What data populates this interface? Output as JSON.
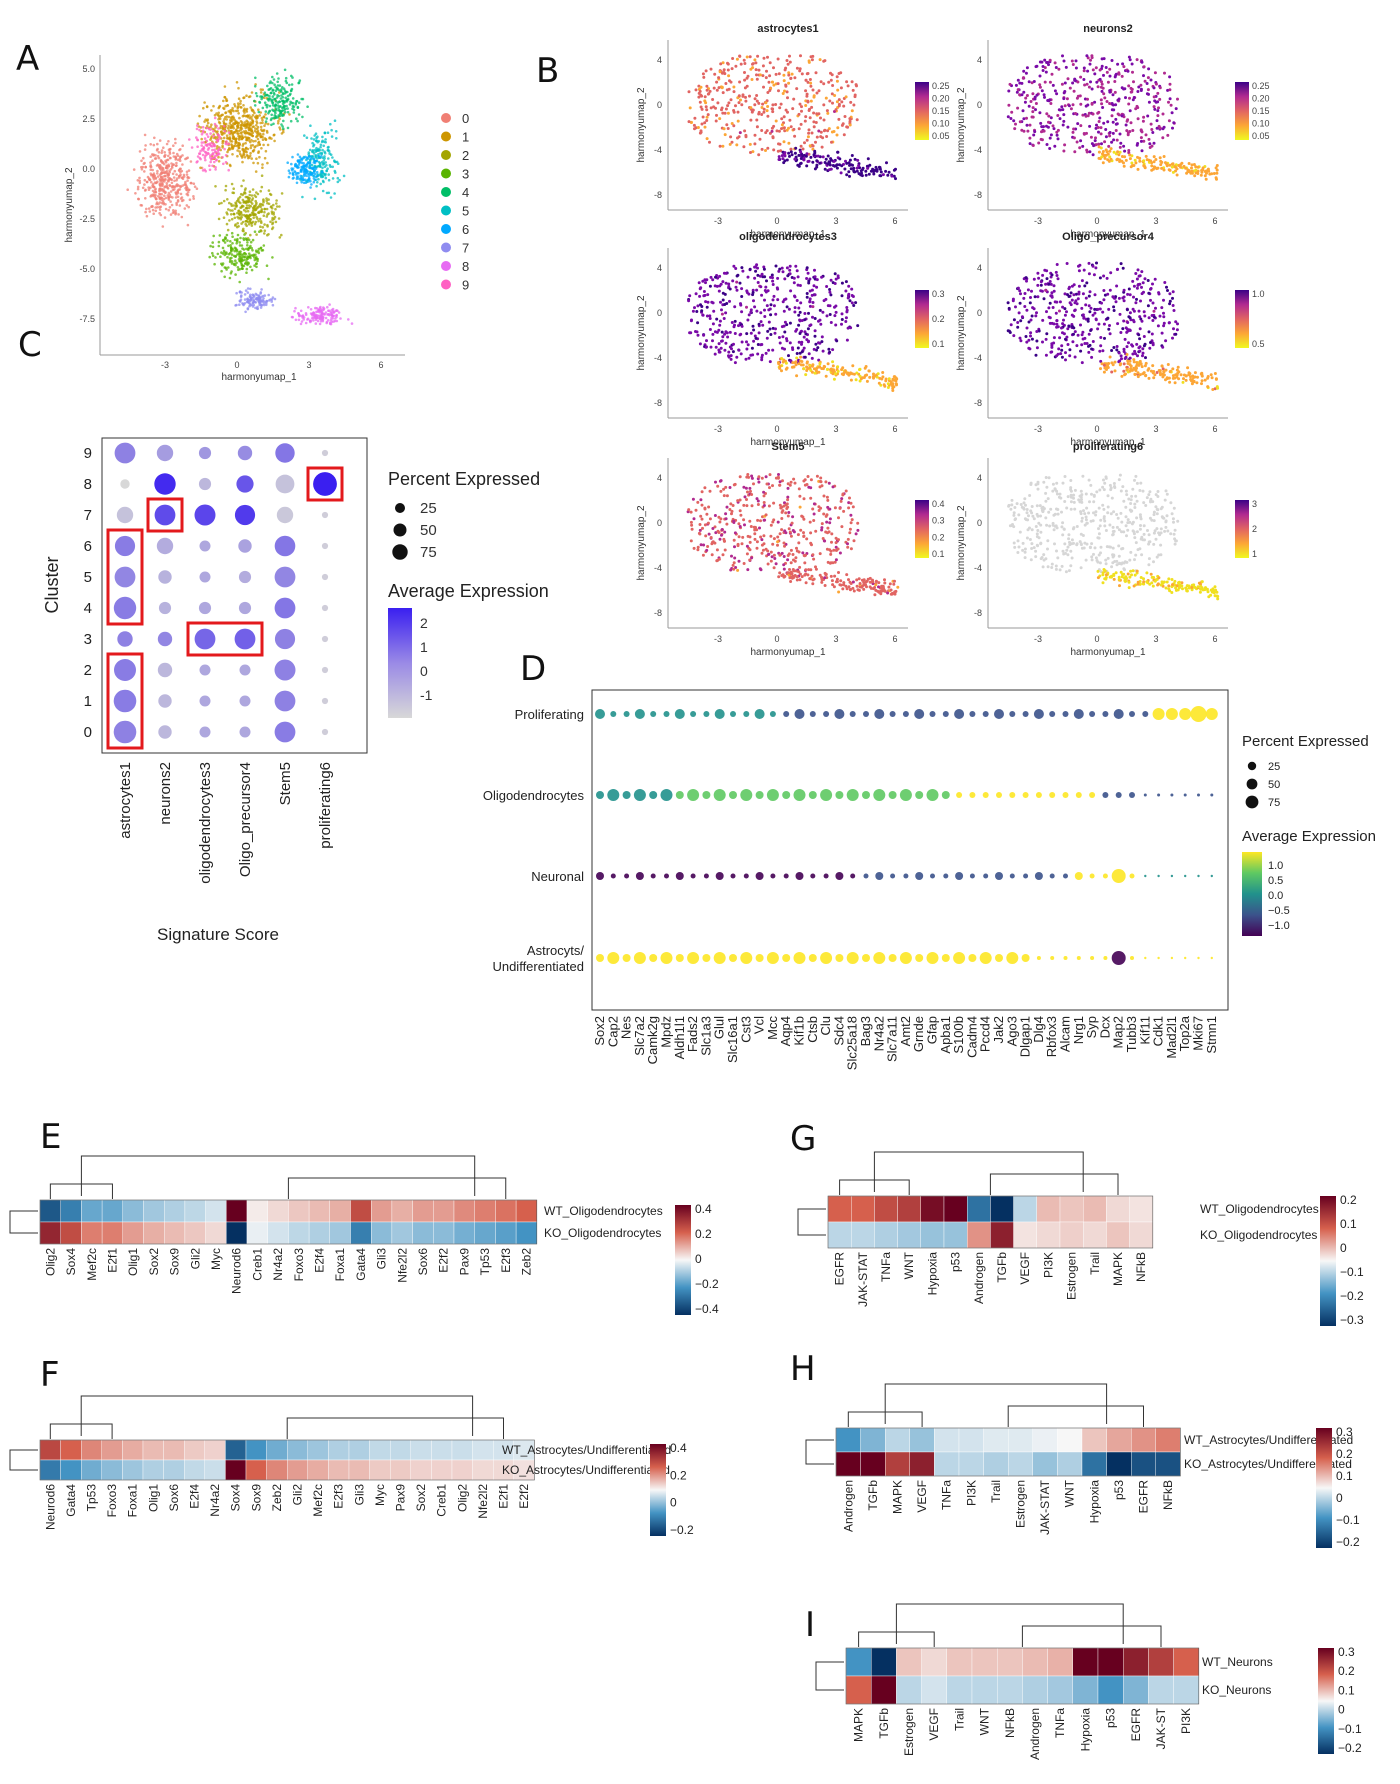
{
  "colors": {
    "clusters": [
      "#f07f74",
      "#cd9600",
      "#a3a500",
      "#5ab400",
      "#00be67",
      "#00bfc4",
      "#00a9ff",
      "#8f8cf0",
      "#e76bf3",
      "#ff61c3"
    ],
    "plasma": [
      "#0d0887",
      "#6a00a8",
      "#b12a90",
      "#e16462",
      "#fca636",
      "#f0f921"
    ],
    "viridis": [
      "#440154",
      "#3b528b",
      "#21918c",
      "#5ec962",
      "#fde725"
    ],
    "dotscale": [
      "#d8d8d8",
      "#8f7ce6",
      "#3a1ff0"
    ],
    "diverging": [
      "#053061",
      "#4393c3",
      "#f7f7f7",
      "#d6604d",
      "#67001f"
    ]
  },
  "panels": {
    "A": {
      "letter": "A"
    },
    "B": {
      "letter": "B"
    },
    "C": {
      "letter": "C"
    },
    "D": {
      "letter": "D"
    },
    "E": {
      "letter": "E"
    },
    "F": {
      "letter": "F"
    },
    "G": {
      "letter": "G"
    },
    "H": {
      "letter": "H"
    },
    "I": {
      "letter": "I"
    }
  },
  "chart_data": [
    {
      "panel": "A",
      "type": "scatter",
      "xlabel": "harmonyumap_1",
      "ylabel": "harmonyumap_2",
      "xticks": [
        "-3",
        "0",
        "3",
        "6"
      ],
      "yticks": [
        "5.0",
        "2.5",
        "0.0",
        "-2.5",
        "-5.0",
        "-7.5"
      ],
      "legend": [
        "0",
        "1",
        "2",
        "3",
        "4",
        "5",
        "6",
        "7",
        "8",
        "9"
      ],
      "legend_position": "right"
    },
    {
      "panel": "B",
      "type": "scatter",
      "xlabel": "harmonyumap_1",
      "ylabel": "harmonyumap_2",
      "xticks": [
        "-3",
        "0",
        "3",
        "6"
      ],
      "yticks": [
        "4",
        "0",
        "-4",
        "-8"
      ],
      "subplots": [
        {
          "title": "astrocytes1",
          "scale": [
            "0.25",
            "0.20",
            "0.15",
            "0.10",
            "0.05"
          ]
        },
        {
          "title": "neurons2",
          "scale": [
            "0.25",
            "0.20",
            "0.15",
            "0.10",
            "0.05"
          ]
        },
        {
          "title": "oligodendrocytes3",
          "scale": [
            "0.3",
            "0.2",
            "0.1"
          ]
        },
        {
          "title": "Oligo_precursor4",
          "scale": [
            "1.0",
            "0.5"
          ]
        },
        {
          "title": "Stem5",
          "scale": [
            "0.4",
            "0.3",
            "0.2",
            "0.1"
          ]
        },
        {
          "title": "proliferating6",
          "scale": [
            "3",
            "2",
            "1"
          ]
        }
      ]
    },
    {
      "panel": "C",
      "type": "scatter",
      "xlabel": "Signature Score",
      "ylabel": "Cluster",
      "categories": [
        "astrocytes1",
        "neurons2",
        "oligodendrocytes3",
        "Oligo_precursor4",
        "Stem5",
        "proliferating6"
      ],
      "clusters": [
        "0",
        "1",
        "2",
        "3",
        "4",
        "5",
        "6",
        "7",
        "8",
        "9"
      ],
      "size_legend_title": "Percent Expressed",
      "size_legend": [
        "25",
        "50",
        "75"
      ],
      "color_legend_title": "Average Expression",
      "color_legend": [
        "2",
        "1",
        "0",
        "-1"
      ],
      "pct": [
        [
          85,
          85,
          80,
          35,
          82,
          70,
          65,
          40,
          10,
          70
        ],
        [
          25,
          25,
          30,
          30,
          20,
          25,
          40,
          70,
          75,
          40
        ],
        [
          15,
          15,
          15,
          70,
          20,
          15,
          15,
          72,
          20,
          20
        ],
        [
          15,
          15,
          15,
          70,
          20,
          20,
          25,
          65,
          45,
          30
        ],
        [
          70,
          70,
          72,
          65,
          70,
          70,
          68,
          40,
          55,
          60
        ],
        [
          3,
          3,
          3,
          3,
          3,
          3,
          3,
          3,
          95,
          3
        ]
      ],
      "avg": [
        [
          0.4,
          0.5,
          0.5,
          0.4,
          0.5,
          0.3,
          0.5,
          -0.8,
          -1.2,
          0.4
        ],
        [
          -0.6,
          -0.6,
          -0.6,
          0.3,
          -0.5,
          -0.5,
          -0.4,
          1.4,
          2.0,
          -0.1
        ],
        [
          -0.3,
          -0.3,
          -0.3,
          0.9,
          -0.3,
          -0.3,
          -0.3,
          1.5,
          -0.6,
          0.0
        ],
        [
          -0.3,
          -0.3,
          -0.3,
          1.0,
          -0.3,
          -0.4,
          -0.2,
          1.7,
          1.2,
          0.2
        ],
        [
          0.5,
          0.4,
          0.4,
          0.4,
          0.6,
          0.3,
          0.6,
          -0.9,
          -0.8,
          0.6
        ],
        [
          -1.0,
          -1.0,
          -1.0,
          -1.0,
          -1.0,
          -1.0,
          -1.0,
          -1.0,
          2.4,
          -1.0
        ]
      ],
      "highlight_boxes": [
        {
          "category": "astrocytes1",
          "clusters": [
            "0",
            "2"
          ]
        },
        {
          "category": "astrocytes1",
          "clusters": [
            "4",
            "6"
          ]
        },
        {
          "category": "neurons2",
          "clusters": [
            "7",
            "7"
          ]
        },
        {
          "category": "oligodendrocytes3",
          "clusters": [
            "3",
            "3"
          ],
          "span_to": "Oligo_precursor4"
        },
        {
          "category": "proliferating6",
          "clusters": [
            "8",
            "8"
          ]
        }
      ]
    },
    {
      "panel": "D",
      "type": "scatter",
      "rows": [
        "Proliferating",
        "Oligodendrocytes",
        "Neuronal",
        "Astrocyts/\nUndifferentiated"
      ],
      "genes": [
        "Sox2",
        "Cap2",
        "Nes",
        "Slc7a2",
        "Camk2g",
        "Mpdz",
        "Aldh1l1",
        "Fads2",
        "Slc1a3",
        "Glul",
        "Slc16a1",
        "Cst3",
        "Vcl",
        "Mcc",
        "Aqp4",
        "Kif1b",
        "Ctsb",
        "Clu",
        "Sdc4",
        "Slc25a18",
        "Bag3",
        "Nr4a2",
        "Slc7a11",
        "Amt2",
        "Grnde",
        "Gfap",
        "Apba1",
        "S100b",
        "Cadm4",
        "Pccd4",
        "Jak2",
        "Ago3",
        "Dlgap1",
        "Dlg4",
        "Rbfox3",
        "Alcam",
        "Nrg1",
        "Syp",
        "Dcx",
        "Map2",
        "Tubb3",
        "Kif11",
        "Cdk1",
        "Mad2l1",
        "Top2a",
        "Mki67",
        "Stmn1"
      ],
      "size_legend_title": "Percent Expressed",
      "size_legend": [
        "25",
        "50",
        "75"
      ],
      "color_legend_title": "Average Expression",
      "color_legend": [
        "1.0",
        "0.5",
        "0.0",
        "−0.5",
        "−1.0"
      ]
    },
    {
      "panel": "E",
      "type": "heatmap",
      "row_labels": [
        "WT_Oligodendrocytes",
        "KO_Oligodendrocytes"
      ],
      "col_labels": [
        "Olig2",
        "Sox4",
        "Mef2c",
        "E2f1",
        "Olig1",
        "Sox2",
        "Sox9",
        "Gli2",
        "Myc",
        "Neurod6",
        "Creb1",
        "Nr4a2",
        "Foxo3",
        "E2f4",
        "Foxa1",
        "Gata4",
        "Gli3",
        "Nfe2l2",
        "Sox6",
        "E2f2",
        "Pax9",
        "Tp53",
        "E2f3",
        "Zeb2"
      ],
      "values": [
        [
          -0.4,
          -0.3,
          -0.2,
          -0.2,
          -0.15,
          -0.12,
          -0.1,
          -0.08,
          -0.05,
          0.5,
          0.02,
          0.05,
          0.08,
          0.1,
          0.12,
          0.3,
          0.15,
          0.12,
          0.15,
          0.15,
          0.18,
          0.2,
          0.22,
          0.25
        ],
        [
          0.4,
          0.3,
          0.2,
          0.2,
          0.15,
          0.12,
          0.1,
          0.08,
          0.05,
          -0.5,
          -0.02,
          -0.05,
          -0.08,
          -0.1,
          -0.12,
          -0.3,
          -0.15,
          -0.12,
          -0.15,
          -0.15,
          -0.18,
          -0.2,
          -0.22,
          -0.25
        ]
      ],
      "scale": [
        "0.4",
        "0.2",
        "0",
        "−0.2",
        "−0.4"
      ]
    },
    {
      "panel": "F",
      "type": "heatmap",
      "row_labels": [
        "WT_Astrocytes/Undifferentiated",
        "KO_Astrocytes/Undifferentiated"
      ],
      "col_labels": [
        "Neurod6",
        "Gata4",
        "Tp53",
        "Foxo3",
        "Foxa1",
        "Olig1",
        "Sox6",
        "E2f4",
        "Nr4a2",
        "Sox4",
        "Sox9",
        "Zeb2",
        "Gli2",
        "Mef2c",
        "E2f3",
        "Gli3",
        "Myc",
        "Pax9",
        "Sox2",
        "Creb1",
        "Olig2",
        "Nfe2l2",
        "E2f1",
        "E2f2"
      ],
      "values": [
        [
          0.25,
          0.2,
          0.15,
          0.12,
          0.1,
          0.08,
          0.08,
          0.06,
          0.05,
          -0.3,
          -0.2,
          -0.15,
          -0.12,
          -0.1,
          -0.08,
          -0.08,
          -0.06,
          -0.06,
          -0.05,
          -0.05,
          -0.05,
          -0.04,
          -0.04,
          -0.03
        ],
        [
          -0.25,
          -0.2,
          -0.15,
          -0.12,
          -0.1,
          -0.08,
          -0.08,
          -0.06,
          -0.05,
          0.4,
          0.2,
          0.15,
          0.12,
          0.1,
          0.08,
          0.08,
          0.06,
          0.06,
          0.05,
          0.05,
          0.05,
          0.04,
          0.04,
          0.03
        ]
      ],
      "scale": [
        "0.4",
        "0.2",
        "0",
        "−0.2"
      ]
    },
    {
      "panel": "G",
      "type": "heatmap",
      "row_labels": [
        "WT_Oligodendrocytes",
        "KO_Oligodendrocytes"
      ],
      "col_labels": [
        "EGFR",
        "JAK-STAT",
        "TNFa",
        "WNT",
        "Hypoxia",
        "p53",
        "Androgen",
        "TGFb",
        "VEGF",
        "PI3K",
        "Estrogen",
        "Trail",
        "MAPK",
        "NFkB"
      ],
      "values": [
        [
          0.15,
          0.15,
          0.18,
          0.2,
          0.28,
          0.3,
          -0.2,
          -0.3,
          -0.05,
          0.06,
          0.05,
          0.06,
          0.03,
          0.02
        ],
        [
          -0.05,
          -0.05,
          -0.06,
          -0.07,
          -0.08,
          -0.08,
          0.1,
          0.25,
          0.02,
          0.03,
          0.04,
          0.03,
          0.05,
          0.03
        ]
      ],
      "scale": [
        "0.2",
        "0.1",
        "0",
        "−0.1",
        "−0.2",
        "−0.3"
      ]
    },
    {
      "panel": "H",
      "type": "heatmap",
      "row_labels": [
        "WT_Astrocytes/Undifferentiated",
        "KO_Astrocytes/Undifferentiated"
      ],
      "col_labels": [
        "Androgen",
        "TGFb",
        "MAPK",
        "VEGF",
        "TNFa",
        "PI3K",
        "Trail",
        "Estrogen",
        "JAK-STAT",
        "WNT",
        "Hypoxia",
        "p53",
        "EGFR",
        "NFkB"
      ],
      "values": [
        [
          -0.15,
          -0.1,
          -0.05,
          -0.08,
          -0.03,
          -0.03,
          -0.02,
          -0.02,
          -0.01,
          0.0,
          0.05,
          0.08,
          0.1,
          0.12
        ],
        [
          0.3,
          0.3,
          0.2,
          0.25,
          -0.05,
          -0.05,
          -0.06,
          -0.05,
          -0.08,
          -0.06,
          -0.2,
          -0.3,
          -0.25,
          -0.25
        ]
      ],
      "scale": [
        "0.3",
        "0.2",
        "0.1",
        "0",
        "−0.1",
        "−0.2"
      ]
    },
    {
      "panel": "I",
      "type": "heatmap",
      "row_labels": [
        "WT_Neurons",
        "KO_Neurons"
      ],
      "col_labels": [
        "MAPK",
        "TGFb",
        "Estrogen",
        "VEGF",
        "Trail",
        "WNT",
        "NFkB",
        "Androgen",
        "TNFa",
        "Hypoxia",
        "p53",
        "EGFR",
        "JAK-ST",
        "PI3K"
      ],
      "values": [
        [
          -0.15,
          -0.3,
          0.05,
          0.03,
          0.05,
          0.05,
          0.05,
          0.06,
          0.07,
          0.3,
          0.32,
          0.25,
          0.2,
          0.15
        ],
        [
          0.15,
          0.3,
          -0.05,
          -0.03,
          -0.05,
          -0.05,
          -0.05,
          -0.06,
          -0.07,
          -0.1,
          -0.15,
          -0.1,
          -0.05,
          -0.05
        ]
      ],
      "scale": [
        "0.3",
        "0.2",
        "0.1",
        "0",
        "−0.1",
        "−0.2"
      ]
    }
  ]
}
